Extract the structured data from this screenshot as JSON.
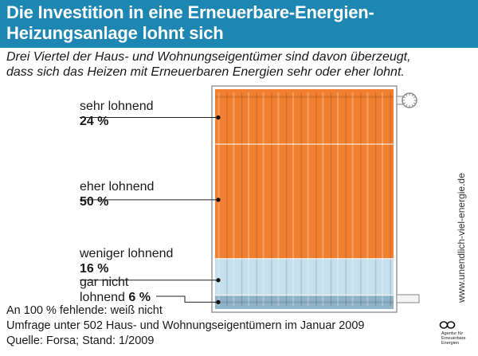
{
  "header": {
    "title_line1": "Die Investition in eine Erneuerbare-Energien-",
    "title_line2": "Heizungsanlage lohnt sich"
  },
  "subtitle": {
    "line1": "Drei Viertel der Haus- und Wohnungseigentümer sind davon überzeugt,",
    "line2": "dass sich das Heizen mit Erneuerbaren Energien sehr oder eher lohnt."
  },
  "chart_data": {
    "type": "bar",
    "title": "Die Investition in eine Erneuerbare-Energien-Heizungsanlage lohnt sich",
    "subtitle": "Drei Viertel der Haus- und Wohnungseigentümer sind davon überzeugt, dass sich das Heizen mit Erneuerbaren Energien sehr oder eher lohnt.",
    "categories": [
      "sehr lohnend",
      "eher lohnend",
      "weniger lohnend",
      "gar nicht lohnend"
    ],
    "values": [
      24,
      50,
      16,
      6
    ],
    "unit": "%",
    "labels": [
      {
        "line1": "sehr lohnend",
        "pct": "24 %"
      },
      {
        "line1": "eher lohnend",
        "pct": "50 %"
      },
      {
        "line1": "weniger lohnend",
        "pct": "16 %"
      },
      {
        "line1": "gar nicht",
        "line2": "lohnend",
        "pct": "6 %"
      }
    ],
    "colors": [
      "#f08030",
      "#f08030",
      "#c6e0ee",
      "#8fb3c8"
    ],
    "stacked": true,
    "style": "radiator"
  },
  "footnotes": {
    "line1": "An 100 % fehlende: weiß nicht",
    "line2": "Umfrage unter 502 Haus- und Wohnungseigentümern im Januar 2009",
    "line3": "Quelle: Forsa; Stand: 1/2009"
  },
  "website": "www.unendlich-viel-energie.de",
  "logo": {
    "line1": "Agentur für",
    "line2": "Erneuerbare",
    "line3": "Energien"
  }
}
